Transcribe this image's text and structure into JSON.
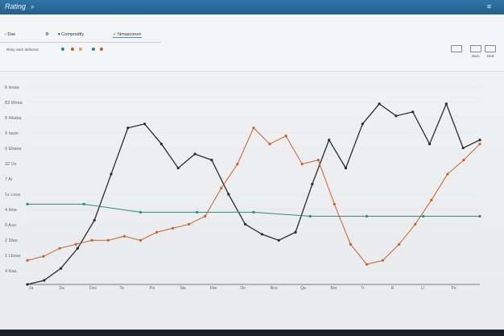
{
  "header": {
    "title": "Rating",
    "search_icon": "search-icon",
    "menu_icon": "menu-icon"
  },
  "toolbar": {
    "back_label": "Dse",
    "tabs": [
      {
        "label": "Comprsdtly"
      },
      {
        "label": "Nmasconen"
      }
    ],
    "filter_label": "Reny vasn atdinzed",
    "actions": [
      {
        "label": "Baro"
      },
      {
        "label": "Ded"
      }
    ]
  },
  "chart_data": {
    "type": "line",
    "ylabels": [
      "6 lesaa",
      "83 Wsna",
      "8 Hkaba",
      "9 haon",
      "6 Ebaea",
      "32 Us",
      "7 Ai",
      "1s Lous",
      "4 Hoa",
      "0 Aos",
      "2 Dlas",
      "1 Lbzan",
      "4 Kaa"
    ],
    "xlabels": [
      "Ja",
      "Da",
      "Dos",
      "Ta",
      "Pa",
      "Sta",
      "Fbe",
      "Oe",
      "Bno",
      "Qa",
      "Bet",
      "Tr",
      "R",
      "U",
      "Pe"
    ],
    "series": [
      {
        "color": "#2a2a2a",
        "values": [
          0,
          2,
          8,
          18,
          32,
          55,
          78,
          80,
          70,
          58,
          65,
          62,
          45,
          30,
          25,
          22,
          26,
          50,
          72,
          58,
          80,
          90,
          84,
          86,
          70,
          90,
          68,
          72
        ]
      },
      {
        "color": "#c8612a",
        "values": [
          12,
          14,
          18,
          20,
          22,
          22,
          24,
          22,
          26,
          28,
          30,
          34,
          48,
          60,
          78,
          70,
          74,
          60,
          62,
          40,
          20,
          10,
          12,
          20,
          30,
          42,
          55,
          62,
          70
        ]
      },
      {
        "color": "#2e8a7e",
        "values": [
          40,
          40,
          36,
          36,
          36,
          34,
          34,
          34,
          34
        ]
      }
    ]
  }
}
